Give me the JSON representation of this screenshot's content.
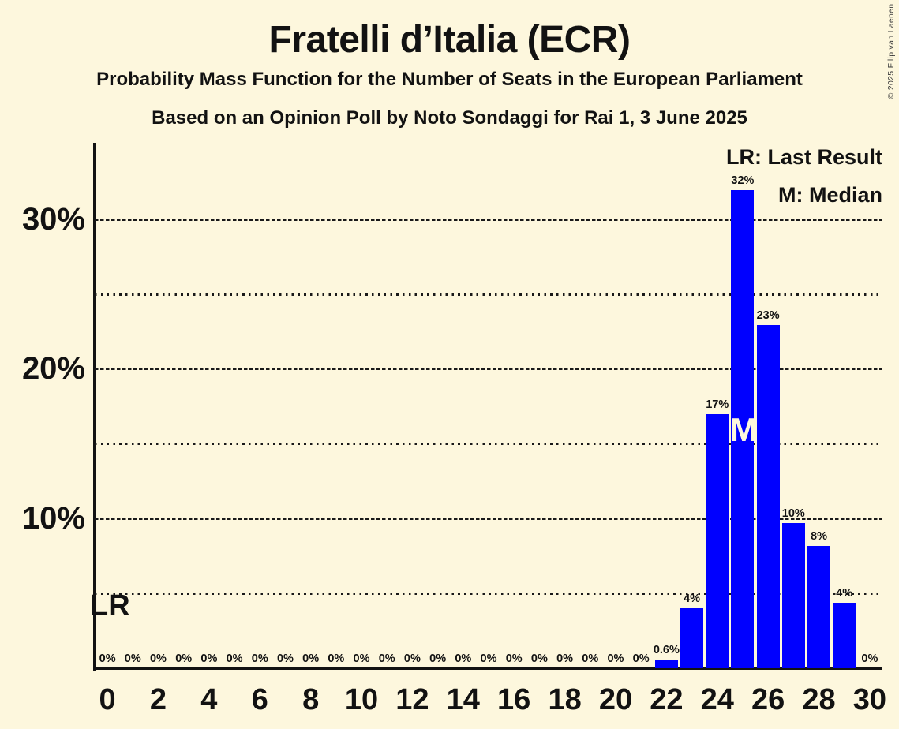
{
  "page": {
    "title": "Fratelli d’Italia (ECR)",
    "subtitle1": "Probability Mass Function for the Number of Seats in the European Parliament",
    "subtitle2": "Based on an Opinion Poll by Noto Sondaggi for Rai 1, 3 June 2025",
    "copyright": "© 2025 Filip van Laenen"
  },
  "legend": {
    "lr": "LR: Last Result",
    "m": "M: Median",
    "position": "top-right"
  },
  "markers": {
    "lr_text": "LR",
    "lr_seat": 0,
    "median_text": "M",
    "median_seat": 25
  },
  "colors": {
    "background": "#fdf7dd",
    "bar": "#0000ff",
    "text": "#121212",
    "grid": "#191919",
    "median_text": "#fdf7dd",
    "copyright": "#3c3c3c"
  },
  "chart_data": {
    "type": "bar",
    "title": "Fratelli d’Italia (ECR)",
    "xlabel": "",
    "ylabel": "",
    "ylim": [
      0,
      35.2
    ],
    "grid": "on",
    "legend_position": "top-right",
    "bars": [
      {
        "seat": 0,
        "value": 0,
        "label": "0%"
      },
      {
        "seat": 1,
        "value": 0,
        "label": "0%"
      },
      {
        "seat": 2,
        "value": 0,
        "label": "0%"
      },
      {
        "seat": 3,
        "value": 0,
        "label": "0%"
      },
      {
        "seat": 4,
        "value": 0,
        "label": "0%"
      },
      {
        "seat": 5,
        "value": 0,
        "label": "0%"
      },
      {
        "seat": 6,
        "value": 0,
        "label": "0%"
      },
      {
        "seat": 7,
        "value": 0,
        "label": "0%"
      },
      {
        "seat": 8,
        "value": 0,
        "label": "0%"
      },
      {
        "seat": 9,
        "value": 0,
        "label": "0%"
      },
      {
        "seat": 10,
        "value": 0,
        "label": "0%"
      },
      {
        "seat": 11,
        "value": 0,
        "label": "0%"
      },
      {
        "seat": 12,
        "value": 0,
        "label": "0%"
      },
      {
        "seat": 13,
        "value": 0,
        "label": "0%"
      },
      {
        "seat": 14,
        "value": 0,
        "label": "0%"
      },
      {
        "seat": 15,
        "value": 0,
        "label": "0%"
      },
      {
        "seat": 16,
        "value": 0,
        "label": "0%"
      },
      {
        "seat": 17,
        "value": 0,
        "label": "0%"
      },
      {
        "seat": 18,
        "value": 0,
        "label": "0%"
      },
      {
        "seat": 19,
        "value": 0,
        "label": "0%"
      },
      {
        "seat": 20,
        "value": 0,
        "label": "0%"
      },
      {
        "seat": 21,
        "value": 0,
        "label": "0%"
      },
      {
        "seat": 22,
        "value": 0.6,
        "label": "0.6%"
      },
      {
        "seat": 23,
        "value": 4,
        "label": "4%"
      },
      {
        "seat": 24,
        "value": 17,
        "label": "17%"
      },
      {
        "seat": 25,
        "value": 32,
        "label": "32%"
      },
      {
        "seat": 26,
        "value": 23,
        "label": "23%"
      },
      {
        "seat": 27,
        "value": 9.7,
        "label": "10%"
      },
      {
        "seat": 28,
        "value": 8.2,
        "label": "8%"
      },
      {
        "seat": 29,
        "value": 4.4,
        "label": "4%"
      },
      {
        "seat": 30,
        "value": 0,
        "label": "0%"
      }
    ],
    "xticks": [
      0,
      2,
      4,
      6,
      8,
      10,
      12,
      14,
      16,
      18,
      20,
      22,
      24,
      26,
      28,
      30
    ],
    "yticks": [
      {
        "pct": 10,
        "label": "10%"
      },
      {
        "pct": 20,
        "label": "20%"
      },
      {
        "pct": 30,
        "label": "30%"
      }
    ],
    "gridlines": {
      "major_pct": [
        10,
        20,
        30
      ],
      "minor_pct": [
        5,
        15,
        25
      ]
    }
  }
}
